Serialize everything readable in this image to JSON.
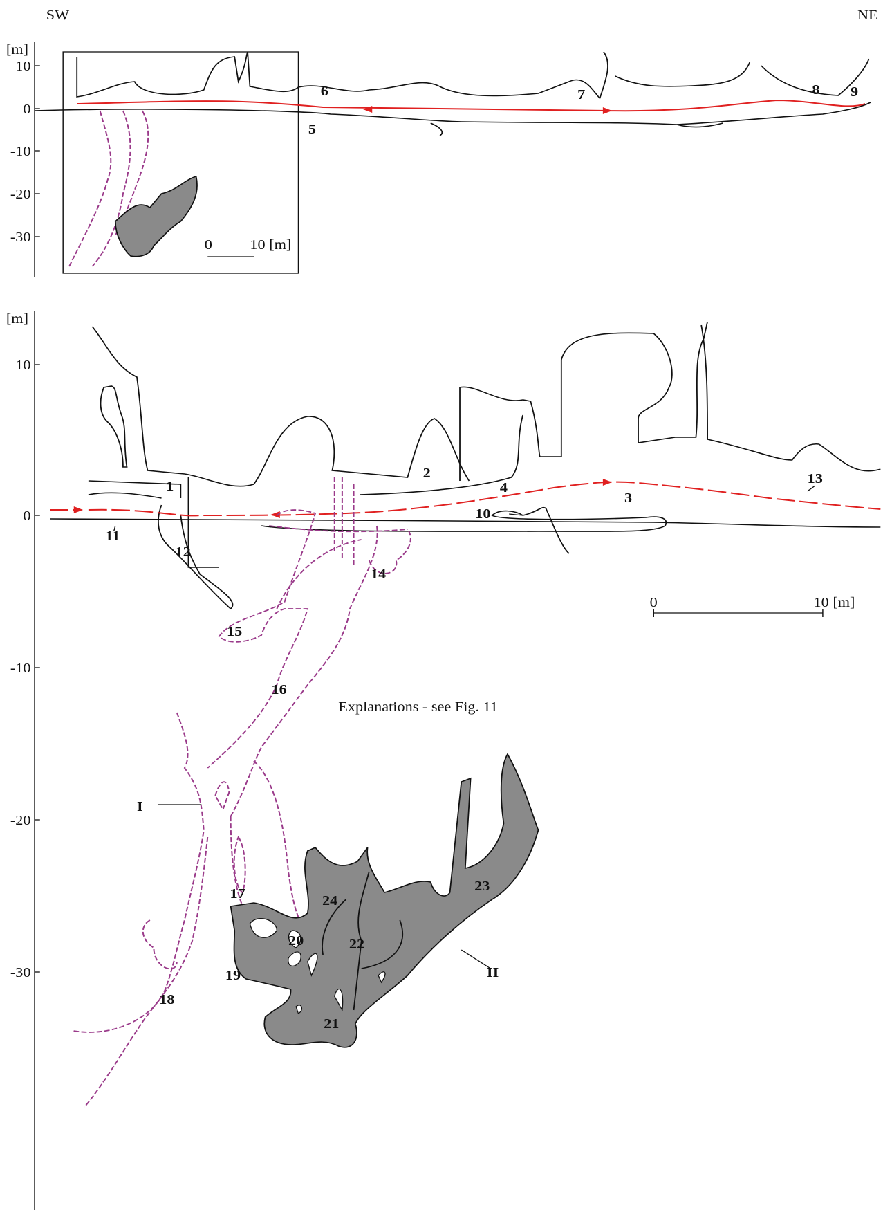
{
  "header": {
    "left": "SW",
    "right": "NE"
  },
  "overview": {
    "unit": "[m]",
    "ticks": [
      "10",
      "0",
      "-10",
      "-20",
      "-30"
    ],
    "labels": [
      "5",
      "6",
      "7",
      "8",
      "9"
    ],
    "scale": [
      "0",
      "10 [m]"
    ]
  },
  "detail": {
    "unit": "[m]",
    "ticks": [
      "10",
      "0",
      "-10",
      "-20",
      "-30"
    ],
    "labels": [
      "1",
      "2",
      "3",
      "4",
      "10",
      "11",
      "12",
      "13",
      "14",
      "15",
      "16",
      "17",
      "18",
      "19",
      "20",
      "21",
      "22",
      "23",
      "24",
      "I",
      "II"
    ],
    "scale": [
      "0",
      "10 [m]"
    ],
    "note": "Explanations - see Fig. 11"
  }
}
